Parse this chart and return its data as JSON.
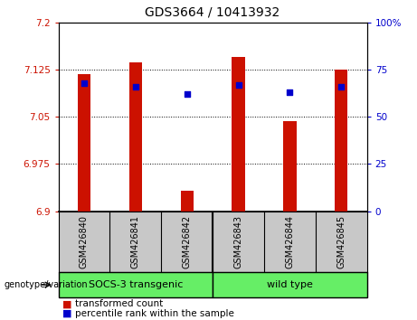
{
  "title": "GDS3664 / 10413932",
  "samples": [
    "GSM426840",
    "GSM426841",
    "GSM426842",
    "GSM426843",
    "GSM426844",
    "GSM426845"
  ],
  "transformed_counts": [
    7.118,
    7.137,
    6.932,
    7.145,
    7.043,
    7.125
  ],
  "percentile_ranks": [
    68,
    66,
    62,
    67,
    63,
    66
  ],
  "ylim_left": [
    6.9,
    7.2
  ],
  "ylim_right": [
    0,
    100
  ],
  "yticks_left": [
    6.9,
    6.975,
    7.05,
    7.125,
    7.2
  ],
  "ytick_labels_left": [
    "6.9",
    "6.975",
    "7.05",
    "7.125",
    "7.2"
  ],
  "yticks_right": [
    0,
    25,
    50,
    75,
    100
  ],
  "ytick_labels_right": [
    "0",
    "25",
    "50",
    "75",
    "100%"
  ],
  "bar_color": "#CC1100",
  "marker_color": "#0000CC",
  "bg_color": "#C8C8C8",
  "green_color": "#66EE66",
  "plot_bg": "#FFFFFF",
  "group1_label": "SOCS-3 transgenic",
  "group2_label": "wild type",
  "genotype_label": "genotype/variation",
  "legend_items": [
    {
      "label": "transformed count",
      "color": "#CC1100"
    },
    {
      "label": "percentile rank within the sample",
      "color": "#0000CC"
    }
  ],
  "bar_width": 0.25
}
